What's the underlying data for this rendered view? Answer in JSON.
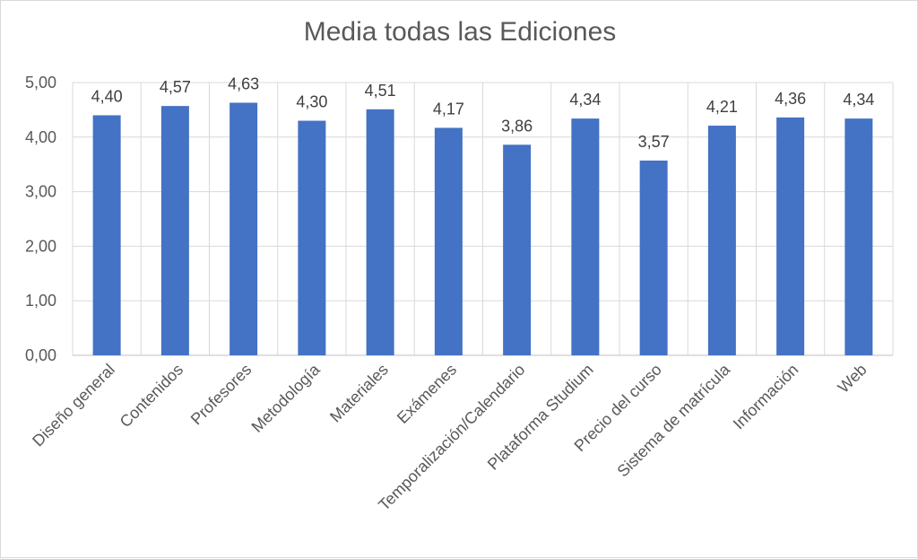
{
  "chart_data": {
    "type": "bar",
    "title": "Media todas las Ediciones",
    "categories": [
      "Diseño general",
      "Contenidos",
      "Profesores",
      "Metodología",
      "Materiales",
      "Exámenes",
      "Temporalización/Calendario",
      "Plataforma Studium",
      "Precio del curso",
      "Sistema de matrícula",
      "Información",
      "Web"
    ],
    "values": [
      4.4,
      4.57,
      4.63,
      4.3,
      4.51,
      4.17,
      3.86,
      4.34,
      3.57,
      4.21,
      4.36,
      4.34
    ],
    "data_labels": [
      "4,40",
      "4,57",
      "4,63",
      "4,30",
      "4,51",
      "4,17",
      "3,86",
      "4,34",
      "3,57",
      "4,21",
      "4,36",
      "4,34"
    ],
    "y_ticks": [
      "0,00",
      "1,00",
      "2,00",
      "3,00",
      "4,00",
      "5,00"
    ],
    "ylim": [
      0,
      5
    ],
    "grid": true,
    "bar_color": "#4472C4"
  }
}
